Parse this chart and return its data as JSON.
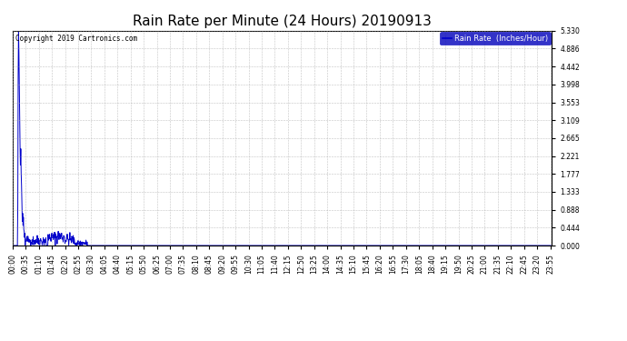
{
  "title": "Rain Rate per Minute (24 Hours) 20190913",
  "copyright_text": "Copyright 2019 Cartronics.com",
  "legend_label": "Rain Rate  (Inches/Hour)",
  "yticks": [
    0.0,
    0.444,
    0.888,
    1.333,
    1.777,
    2.221,
    2.665,
    3.109,
    3.553,
    3.998,
    4.442,
    4.886,
    5.33
  ],
  "ymin": 0.0,
  "ymax": 5.33,
  "line_color": "#0000cc",
  "background_color": "#ffffff",
  "grid_color": "#aaaaaa",
  "title_fontsize": 11,
  "tick_fontsize": 5.5,
  "total_minutes": 1440,
  "xtick_interval": 35
}
